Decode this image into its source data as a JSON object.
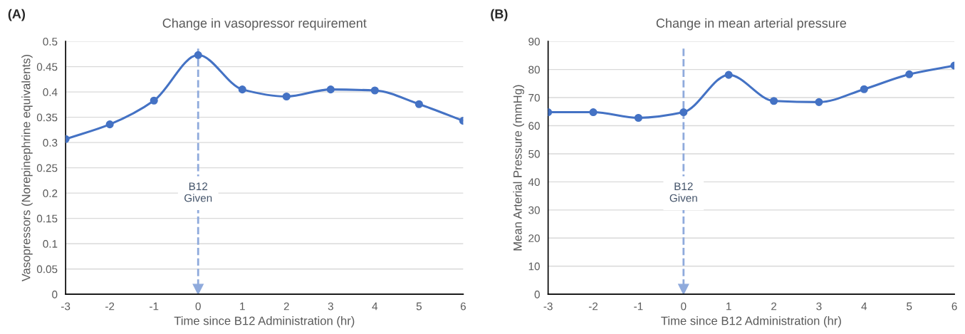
{
  "chart_data": [
    {
      "type": "line",
      "title": "Change in vasopressor requirement",
      "xlabel": "Time since B12 Administration (hr)",
      "ylabel": "Vasopressors (Norepinephrine equivalents)",
      "annotations": [
        "(A)"
      ],
      "x": [
        -3,
        -2,
        -1,
        0,
        1,
        2,
        3,
        4,
        5,
        6
      ],
      "series": [
        {
          "color": "#4472c4",
          "values": [
            0.307,
            0.336,
            0.383,
            0.473,
            0.405,
            0.391,
            0.405,
            0.403,
            0.376,
            0.343
          ]
        }
      ],
      "xlim": [
        -3,
        6
      ],
      "xticks": [
        -3,
        -2,
        -1,
        0,
        1,
        2,
        3,
        4,
        5,
        6
      ],
      "ylim": [
        0,
        0.5
      ],
      "yticks": [
        0,
        0.05,
        0.1,
        0.15,
        0.2,
        0.25,
        0.3,
        0.35,
        0.4,
        0.45,
        0.5
      ],
      "ref_lines": [
        {
          "axis": "x",
          "value": 0,
          "label": "B12\nGiven",
          "color": "#8faadc",
          "line_style": "dashed"
        }
      ],
      "grid": "y",
      "marker": "circle",
      "line_style": "solid",
      "legend": false
    },
    {
      "type": "line",
      "title": "Change in mean arterial pressure",
      "xlabel": "Time since B12 Administration (hr)",
      "ylabel": "Mean Arterial Pressure (mmHg)",
      "annotations": [
        "(B)"
      ],
      "x": [
        -3,
        -2,
        -1,
        0,
        1,
        2,
        3,
        4,
        5,
        6
      ],
      "series": [
        {
          "color": "#4472c4",
          "values": [
            64.8,
            64.8,
            62.8,
            64.8,
            78.1,
            68.8,
            68.4,
            73.0,
            78.3,
            81.4
          ]
        }
      ],
      "xlim": [
        -3,
        6
      ],
      "xticks": [
        -3,
        -2,
        -1,
        0,
        1,
        2,
        3,
        4,
        5,
        6
      ],
      "ylim": [
        0,
        90
      ],
      "yticks": [
        0,
        10,
        20,
        30,
        40,
        50,
        60,
        70,
        80,
        90
      ],
      "ref_lines": [
        {
          "axis": "x",
          "value": 0,
          "label": "B12\nGiven",
          "color": "#8faadc",
          "line_style": "dashed"
        }
      ],
      "grid": "y",
      "marker": "circle",
      "line_style": "solid",
      "legend": false
    }
  ]
}
